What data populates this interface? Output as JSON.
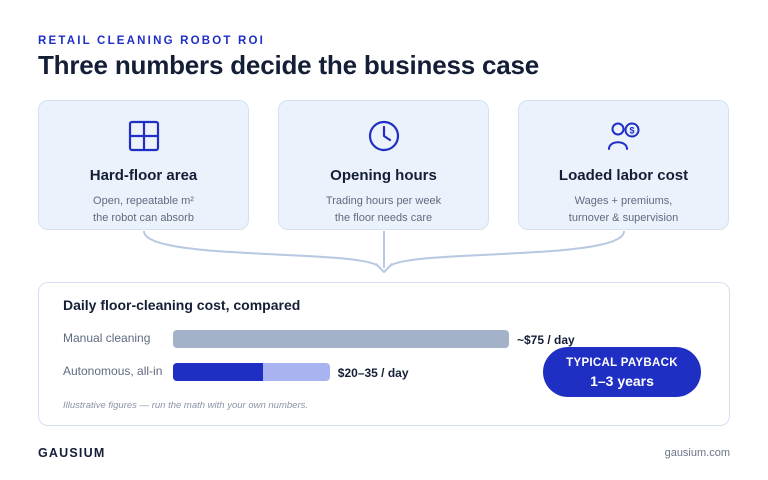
{
  "header": {
    "eyebrow": "RETAIL CLEANING ROBOT ROI",
    "title": "Three numbers decide the business case"
  },
  "cards": [
    {
      "icon": "grid-area-icon",
      "title": "Hard-floor area",
      "desc_line1": "Open, repeatable m²",
      "desc_line2": "the robot can absorb"
    },
    {
      "icon": "clock-icon",
      "title": "Opening hours",
      "desc_line1": "Trading hours per week",
      "desc_line2": "the floor needs care"
    },
    {
      "icon": "people-cost-icon",
      "title": "Loaded labor cost",
      "desc_line1": "Wages + premiums,",
      "desc_line2": "turnover & supervision"
    }
  ],
  "comparison": {
    "title": "Daily floor-cleaning cost, compared",
    "rows": [
      {
        "label": "Manual cleaning",
        "value_label": "~$75 / day"
      },
      {
        "label": "Autonomous, all-in",
        "value_label": "$20–35 / day"
      }
    ],
    "footnote": "Illustrative figures — run the math with your own numbers."
  },
  "chart_data": {
    "type": "bar",
    "categories": [
      "Manual cleaning",
      "Autonomous, all-in"
    ],
    "values": [
      75,
      [
        20,
        35
      ]
    ],
    "title": "Daily floor-cleaning cost, compared",
    "xlabel": "",
    "ylabel": "",
    "xlim": [
      0,
      75
    ],
    "colors": {
      "manual": "#a3b2c8",
      "autonomous_low": "#1f2fc4",
      "autonomous_range": "#a8b3ef"
    }
  },
  "payback": {
    "label": "TYPICAL PAYBACK",
    "value": "1–3 years"
  },
  "footer": {
    "brand": "GAUSIUM",
    "site": "gausium.com"
  },
  "colors": {
    "accent": "#1f2fc4",
    "card_bg": "#ecf2fb",
    "connector": "#b9c8e3"
  }
}
